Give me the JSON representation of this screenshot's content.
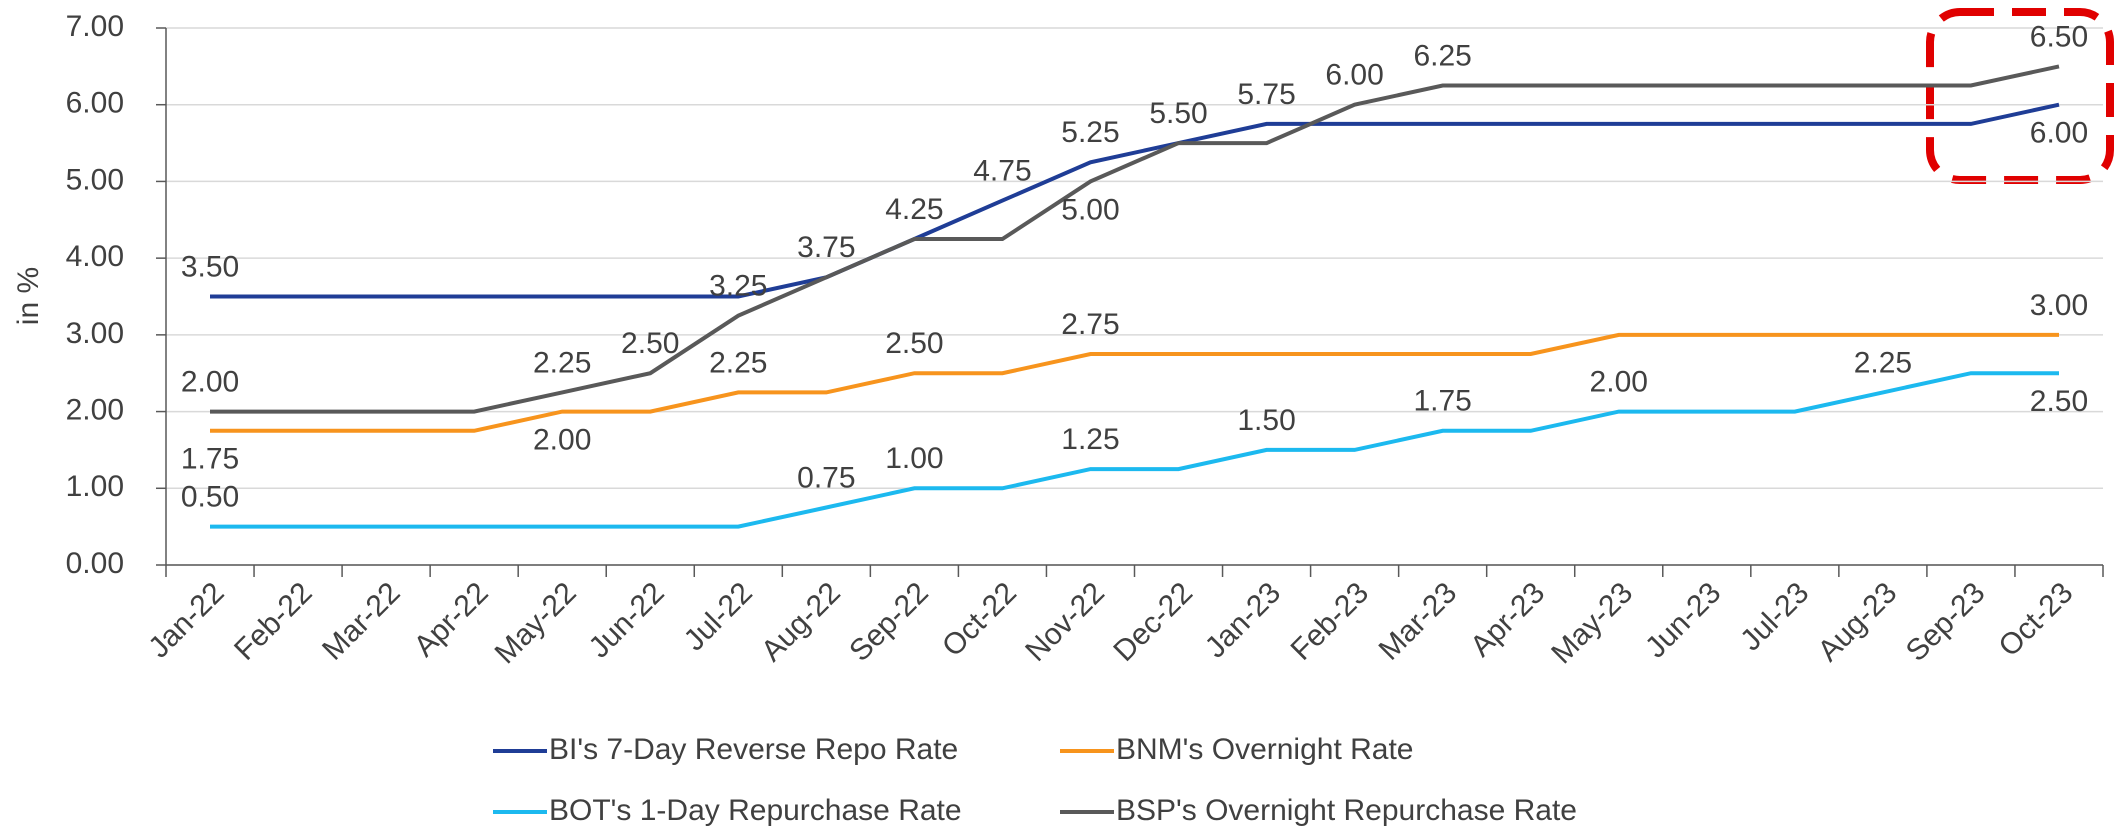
{
  "chart_data": {
    "type": "line",
    "y_label": "in %",
    "categories": [
      "Jan-22",
      "Feb-22",
      "Mar-22",
      "Apr-22",
      "May-22",
      "Jun-22",
      "Jul-22",
      "Aug-22",
      "Sep-22",
      "Oct-22",
      "Nov-22",
      "Dec-22",
      "Jan-23",
      "Feb-23",
      "Mar-23",
      "Apr-23",
      "May-23",
      "Jun-23",
      "Jul-23",
      "Aug-23",
      "Sep-23",
      "Oct-23"
    ],
    "ylim": [
      0,
      7
    ],
    "yticks": [
      {
        "value": 0,
        "label": "0.00"
      },
      {
        "value": 1,
        "label": "1.00"
      },
      {
        "value": 2,
        "label": "2.00"
      },
      {
        "value": 3,
        "label": "3.00"
      },
      {
        "value": 4,
        "label": "4.00"
      },
      {
        "value": 5,
        "label": "5.00"
      },
      {
        "value": 6,
        "label": "6.00"
      },
      {
        "value": 7,
        "label": "7.00"
      }
    ],
    "grid": true,
    "legend": "bottom",
    "series": [
      {
        "name": "BI's 7-Day Reverse Repo Rate",
        "color": "#1f3d96",
        "values": [
          3.5,
          3.5,
          3.5,
          3.5,
          3.5,
          3.5,
          3.5,
          3.75,
          4.25,
          4.75,
          5.25,
          5.5,
          5.75,
          5.75,
          5.75,
          5.75,
          5.75,
          5.75,
          5.75,
          5.75,
          5.75,
          6.0
        ],
        "value_labels": [
          "3.50",
          null,
          null,
          null,
          null,
          null,
          null,
          "3.75",
          null,
          "4.75",
          "5.25",
          "5.50",
          "5.75",
          null,
          null,
          null,
          null,
          null,
          null,
          null,
          null,
          "6.00"
        ]
      },
      {
        "name": "BNM's Overnight Rate",
        "color": "#f7941d",
        "values": [
          1.75,
          1.75,
          1.75,
          1.75,
          2.0,
          2.0,
          2.25,
          2.25,
          2.5,
          2.5,
          2.75,
          2.75,
          2.75,
          2.75,
          2.75,
          2.75,
          3.0,
          3.0,
          3.0,
          3.0,
          3.0,
          3.0
        ],
        "value_labels": [
          "1.75",
          null,
          null,
          null,
          "2.00",
          null,
          "2.25",
          null,
          "2.50",
          null,
          "2.75",
          null,
          null,
          null,
          null,
          null,
          null,
          null,
          null,
          null,
          null,
          "3.00"
        ]
      },
      {
        "name": "BOT's 1-Day Repurchase Rate",
        "color": "#1cb9ef",
        "values": [
          0.5,
          0.5,
          0.5,
          0.5,
          0.5,
          0.5,
          0.5,
          0.75,
          1.0,
          1.0,
          1.25,
          1.25,
          1.5,
          1.5,
          1.75,
          1.75,
          2.0,
          2.0,
          2.0,
          2.25,
          2.5,
          2.5
        ],
        "value_labels": [
          "0.50",
          null,
          null,
          null,
          null,
          null,
          null,
          "0.75",
          "1.00",
          null,
          "1.25",
          null,
          "1.50",
          null,
          "1.75",
          null,
          "2.00",
          null,
          null,
          "2.25",
          null,
          "2.50"
        ]
      },
      {
        "name": "BSP's Overnight Repurchase Rate",
        "color": "#595959",
        "values": [
          2.0,
          2.0,
          2.0,
          2.0,
          2.25,
          2.5,
          3.25,
          3.75,
          4.25,
          4.25,
          5.0,
          5.5,
          5.5,
          6.0,
          6.25,
          6.25,
          6.25,
          6.25,
          6.25,
          6.25,
          6.25,
          6.5
        ],
        "value_labels": [
          "2.00",
          null,
          null,
          null,
          "2.25",
          "2.50",
          "3.25",
          null,
          "4.25",
          null,
          "5.00",
          null,
          null,
          "6.00",
          "6.25",
          null,
          null,
          null,
          null,
          null,
          null,
          "6.50"
        ]
      }
    ]
  }
}
